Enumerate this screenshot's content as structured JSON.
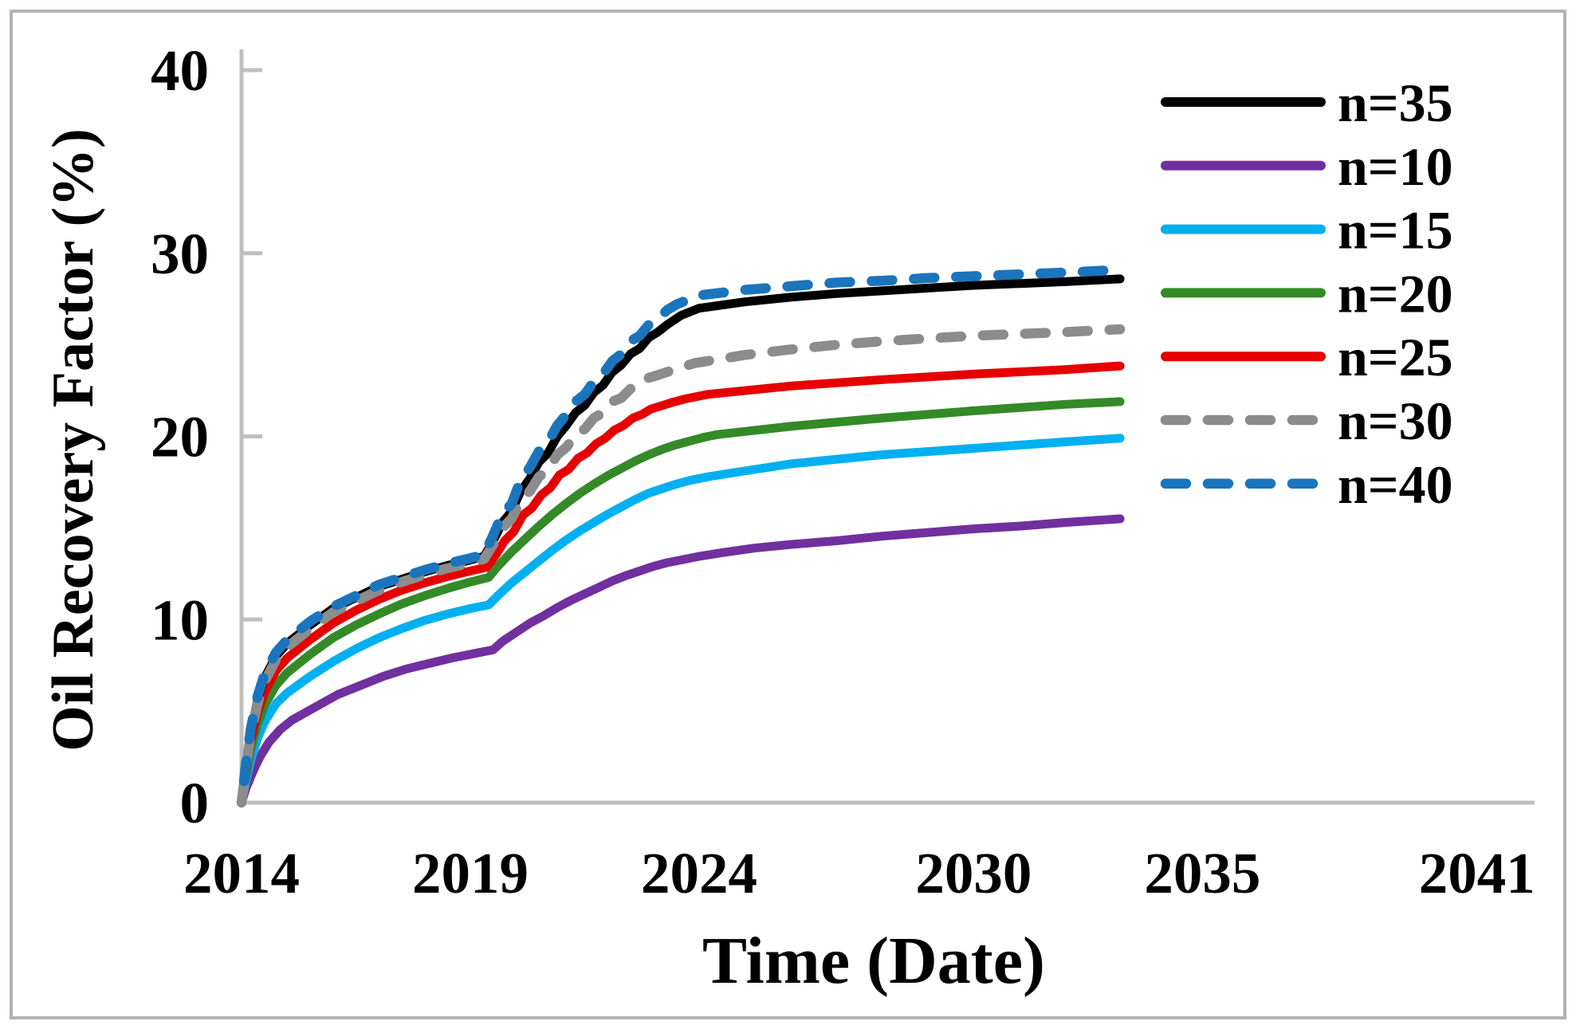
{
  "figure": {
    "background": "#ffffff",
    "border_color": "#b3b3b3",
    "axis_color": "#bfbfbf"
  },
  "chart_data": {
    "type": "line",
    "title": "",
    "xlabel": "Time (Date)",
    "ylabel": "Oil Recovery Factor (%)",
    "grid": false,
    "legend_position": "right",
    "x_axis": {
      "min": 2014,
      "max": 2042,
      "tick_labels": [
        "2014",
        "2019",
        "2024",
        "2030",
        "2035",
        "2041"
      ],
      "tick_years": [
        2014,
        2019,
        2024,
        2030,
        2035,
        2041
      ]
    },
    "y_axis": {
      "min": 0,
      "max": 40,
      "tick_labels": [
        "0",
        "10",
        "20",
        "30",
        "40"
      ],
      "tick_values": [
        0,
        10,
        20,
        30,
        40
      ]
    },
    "series": [
      {
        "name": "n=35",
        "color": "#000000",
        "dash": false,
        "z": 5,
        "x": [
          2014.0,
          2014.1,
          2014.2,
          2014.35,
          2014.5,
          2014.75,
          2015.0,
          2015.5,
          2016.0,
          2016.5,
          2017.0,
          2017.5,
          2018.0,
          2018.5,
          2019.0,
          2019.3,
          2019.5,
          2019.7,
          2019.9,
          2020.1,
          2020.3,
          2020.5,
          2020.7,
          2020.9,
          2021.1,
          2021.3,
          2021.5,
          2021.7,
          2021.9,
          2022.1,
          2022.3,
          2022.5,
          2022.7,
          2022.9,
          2023.1,
          2023.3,
          2023.6,
          2024.0,
          2025.0,
          2026.0,
          2027.0,
          2028.0,
          2029.0,
          2030.0,
          2031.0,
          2032.0,
          2033.2
        ],
        "y": [
          0,
          2.1,
          3.8,
          5.6,
          6.8,
          8.0,
          8.7,
          9.7,
          10.6,
          11.2,
          11.8,
          12.2,
          12.6,
          12.95,
          13.25,
          13.45,
          14.3,
          15.3,
          15.9,
          17.0,
          17.7,
          18.6,
          19.1,
          20.0,
          20.6,
          21.3,
          21.7,
          22.4,
          22.8,
          23.5,
          23.9,
          24.5,
          24.8,
          25.4,
          25.7,
          26.1,
          26.6,
          27.0,
          27.35,
          27.6,
          27.8,
          27.95,
          28.1,
          28.25,
          28.35,
          28.45,
          28.6
        ]
      },
      {
        "name": "n=10",
        "color": "#7030a0",
        "dash": false,
        "z": 1,
        "x": [
          2014.0,
          2014.1,
          2014.25,
          2014.4,
          2014.6,
          2014.85,
          2015.1,
          2015.6,
          2016.1,
          2016.6,
          2017.1,
          2017.6,
          2018.1,
          2018.6,
          2019.1,
          2019.5,
          2019.7,
          2020.0,
          2020.3,
          2020.6,
          2020.9,
          2021.2,
          2021.5,
          2021.8,
          2022.1,
          2022.4,
          2022.7,
          2023.0,
          2023.3,
          2023.6,
          2024.0,
          2024.5,
          2025.2,
          2026.0,
          2027.0,
          2028.0,
          2029.0,
          2030.0,
          2031.0,
          2032.0,
          2033.2
        ],
        "y": [
          0,
          0.8,
          1.7,
          2.5,
          3.3,
          4.0,
          4.5,
          5.2,
          5.9,
          6.4,
          6.9,
          7.3,
          7.6,
          7.9,
          8.15,
          8.35,
          8.8,
          9.3,
          9.8,
          10.2,
          10.65,
          11.05,
          11.4,
          11.75,
          12.1,
          12.4,
          12.65,
          12.9,
          13.1,
          13.25,
          13.45,
          13.65,
          13.9,
          14.1,
          14.3,
          14.55,
          14.75,
          14.95,
          15.1,
          15.3,
          15.5
        ]
      },
      {
        "name": "n=15",
        "color": "#00b0f0",
        "dash": false,
        "z": 2,
        "x": [
          2014.0,
          2014.1,
          2014.2,
          2014.35,
          2014.5,
          2014.75,
          2015.0,
          2015.5,
          2016.0,
          2016.5,
          2017.0,
          2017.5,
          2018.0,
          2018.5,
          2019.0,
          2019.4,
          2019.6,
          2019.9,
          2020.2,
          2020.5,
          2020.8,
          2021.1,
          2021.4,
          2021.7,
          2022.0,
          2022.3,
          2022.6,
          2022.9,
          2023.2,
          2023.5,
          2023.8,
          2024.2,
          2024.7,
          2026.0,
          2028.0,
          2030.0,
          2032.0,
          2033.2
        ],
        "y": [
          0,
          1.2,
          2.3,
          3.5,
          4.4,
          5.4,
          6.0,
          6.9,
          7.7,
          8.4,
          9.0,
          9.5,
          9.95,
          10.3,
          10.6,
          10.8,
          11.3,
          12.0,
          12.6,
          13.2,
          13.8,
          14.35,
          14.85,
          15.3,
          15.75,
          16.15,
          16.55,
          16.9,
          17.15,
          17.4,
          17.6,
          17.8,
          18.0,
          18.5,
          19.0,
          19.35,
          19.7,
          19.9
        ]
      },
      {
        "name": "n=20",
        "color": "#338a27",
        "dash": false,
        "z": 3,
        "x": [
          2014.0,
          2014.1,
          2014.2,
          2014.35,
          2014.5,
          2014.75,
          2015.0,
          2015.5,
          2016.0,
          2016.5,
          2017.0,
          2017.5,
          2018.0,
          2018.5,
          2019.0,
          2019.4,
          2019.6,
          2019.9,
          2020.2,
          2020.5,
          2020.8,
          2021.1,
          2021.4,
          2021.7,
          2022.0,
          2022.3,
          2022.6,
          2022.9,
          2023.2,
          2023.5,
          2023.8,
          2024.1,
          2024.4,
          2026.0,
          2028.0,
          2030.0,
          2032.0,
          2033.2
        ],
        "y": [
          0,
          1.5,
          2.9,
          4.3,
          5.3,
          6.4,
          7.1,
          8.1,
          9.0,
          9.7,
          10.3,
          10.85,
          11.3,
          11.7,
          12.05,
          12.3,
          12.9,
          13.7,
          14.4,
          15.1,
          15.75,
          16.35,
          16.9,
          17.4,
          17.85,
          18.25,
          18.65,
          19.0,
          19.3,
          19.55,
          19.75,
          19.95,
          20.1,
          20.55,
          21.0,
          21.4,
          21.75,
          21.9
        ]
      },
      {
        "name": "n=25",
        "color": "#e60000",
        "dash": false,
        "z": 4,
        "x": [
          2014.0,
          2014.1,
          2014.2,
          2014.35,
          2014.5,
          2014.75,
          2015.0,
          2015.5,
          2016.0,
          2016.5,
          2017.0,
          2017.5,
          2018.0,
          2018.5,
          2019.0,
          2019.35,
          2019.55,
          2019.75,
          2019.95,
          2020.15,
          2020.35,
          2020.55,
          2020.75,
          2020.95,
          2021.15,
          2021.35,
          2021.55,
          2021.75,
          2021.95,
          2022.15,
          2022.35,
          2022.55,
          2022.75,
          2022.95,
          2023.15,
          2023.4,
          2023.7,
          2024.2,
          2026.0,
          2028.0,
          2030.0,
          2032.0,
          2033.2
        ],
        "y": [
          0,
          1.8,
          3.3,
          4.9,
          6.0,
          7.2,
          7.9,
          8.9,
          9.8,
          10.5,
          11.1,
          11.6,
          12.0,
          12.35,
          12.65,
          12.85,
          13.5,
          14.3,
          14.8,
          15.7,
          16.1,
          16.8,
          17.2,
          17.9,
          18.2,
          18.8,
          19.1,
          19.6,
          19.9,
          20.35,
          20.6,
          21.0,
          21.2,
          21.5,
          21.65,
          21.85,
          22.05,
          22.3,
          22.75,
          23.1,
          23.4,
          23.65,
          23.85
        ]
      },
      {
        "name": "n=30",
        "color": "#8c8c8c",
        "dash": true,
        "z": 6,
        "x": [
          2014.0,
          2014.1,
          2014.2,
          2014.35,
          2014.5,
          2014.75,
          2015.0,
          2015.5,
          2016.0,
          2016.5,
          2017.0,
          2017.5,
          2018.0,
          2018.5,
          2019.0,
          2019.3,
          2019.5,
          2019.7,
          2019.9,
          2020.1,
          2020.3,
          2020.5,
          2020.7,
          2020.9,
          2021.1,
          2021.3,
          2021.5,
          2021.7,
          2021.9,
          2022.1,
          2022.3,
          2022.5,
          2022.7,
          2022.9,
          2023.1,
          2023.4,
          2023.9,
          2025.0,
          2026.0,
          2027.0,
          2028.0,
          2029.0,
          2030.0,
          2031.0,
          2032.0,
          2033.2
        ],
        "y": [
          0,
          2.0,
          3.7,
          5.4,
          6.6,
          7.8,
          8.5,
          9.5,
          10.4,
          11.0,
          11.6,
          12.05,
          12.45,
          12.8,
          13.1,
          13.3,
          14.1,
          15.0,
          15.5,
          16.5,
          17.0,
          17.8,
          18.2,
          19.0,
          19.4,
          20.1,
          20.4,
          21.0,
          21.3,
          21.9,
          22.1,
          22.6,
          22.8,
          23.2,
          23.35,
          23.6,
          24.0,
          24.45,
          24.75,
          25.0,
          25.2,
          25.35,
          25.5,
          25.6,
          25.7,
          25.85
        ]
      },
      {
        "name": "n=40",
        "color": "#1b75bc",
        "dash": true,
        "z": 7,
        "x": [
          2014.0,
          2014.1,
          2014.2,
          2014.35,
          2014.5,
          2014.75,
          2015.0,
          2015.5,
          2016.0,
          2016.5,
          2017.0,
          2017.5,
          2018.0,
          2018.5,
          2019.0,
          2019.3,
          2019.5,
          2019.7,
          2019.9,
          2020.1,
          2020.3,
          2020.5,
          2020.7,
          2020.9,
          2021.1,
          2021.3,
          2021.5,
          2021.7,
          2021.9,
          2022.1,
          2022.3,
          2022.5,
          2022.7,
          2022.9,
          2023.1,
          2023.3,
          2023.5,
          2024.0,
          2025.0,
          2026.0,
          2027.0,
          2028.0,
          2029.0,
          2030.0,
          2031.0,
          2032.0,
          2033.2
        ],
        "y": [
          0,
          2.2,
          4.0,
          5.8,
          7.0,
          8.2,
          8.9,
          9.9,
          10.7,
          11.3,
          11.9,
          12.3,
          12.7,
          13.05,
          13.35,
          13.55,
          14.6,
          15.8,
          16.3,
          17.6,
          18.3,
          19.2,
          19.7,
          20.6,
          21.2,
          21.9,
          22.3,
          23.0,
          23.4,
          24.1,
          24.5,
          25.2,
          25.5,
          26.1,
          26.4,
          26.9,
          27.2,
          27.7,
          28.0,
          28.2,
          28.4,
          28.5,
          28.65,
          28.75,
          28.85,
          28.95,
          29.1
        ]
      }
    ]
  }
}
